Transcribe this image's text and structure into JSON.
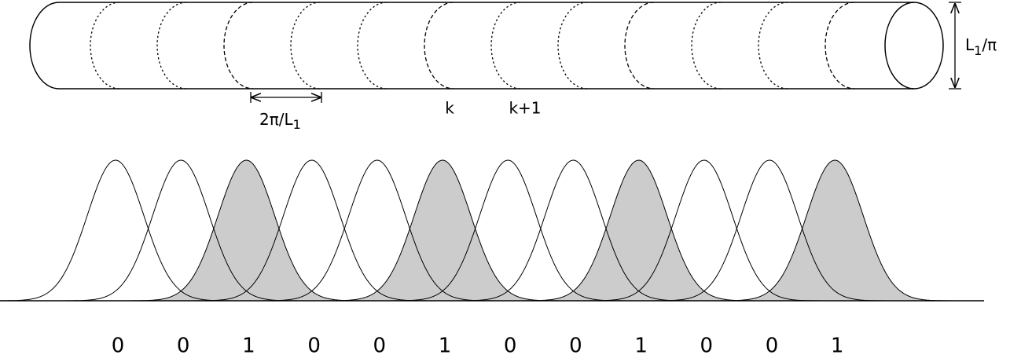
{
  "diagram": {
    "period_label": {
      "base": "2π/L",
      "subscript": "1"
    },
    "index_labels": [
      "k",
      "k+1"
    ],
    "diameter_label": {
      "base": "L",
      "subscript": "1",
      "rest": "/π"
    },
    "bits": [
      "0",
      "0",
      "1",
      "0",
      "0",
      "1",
      "0",
      "0",
      "1",
      "0",
      "0",
      "1"
    ]
  }
}
